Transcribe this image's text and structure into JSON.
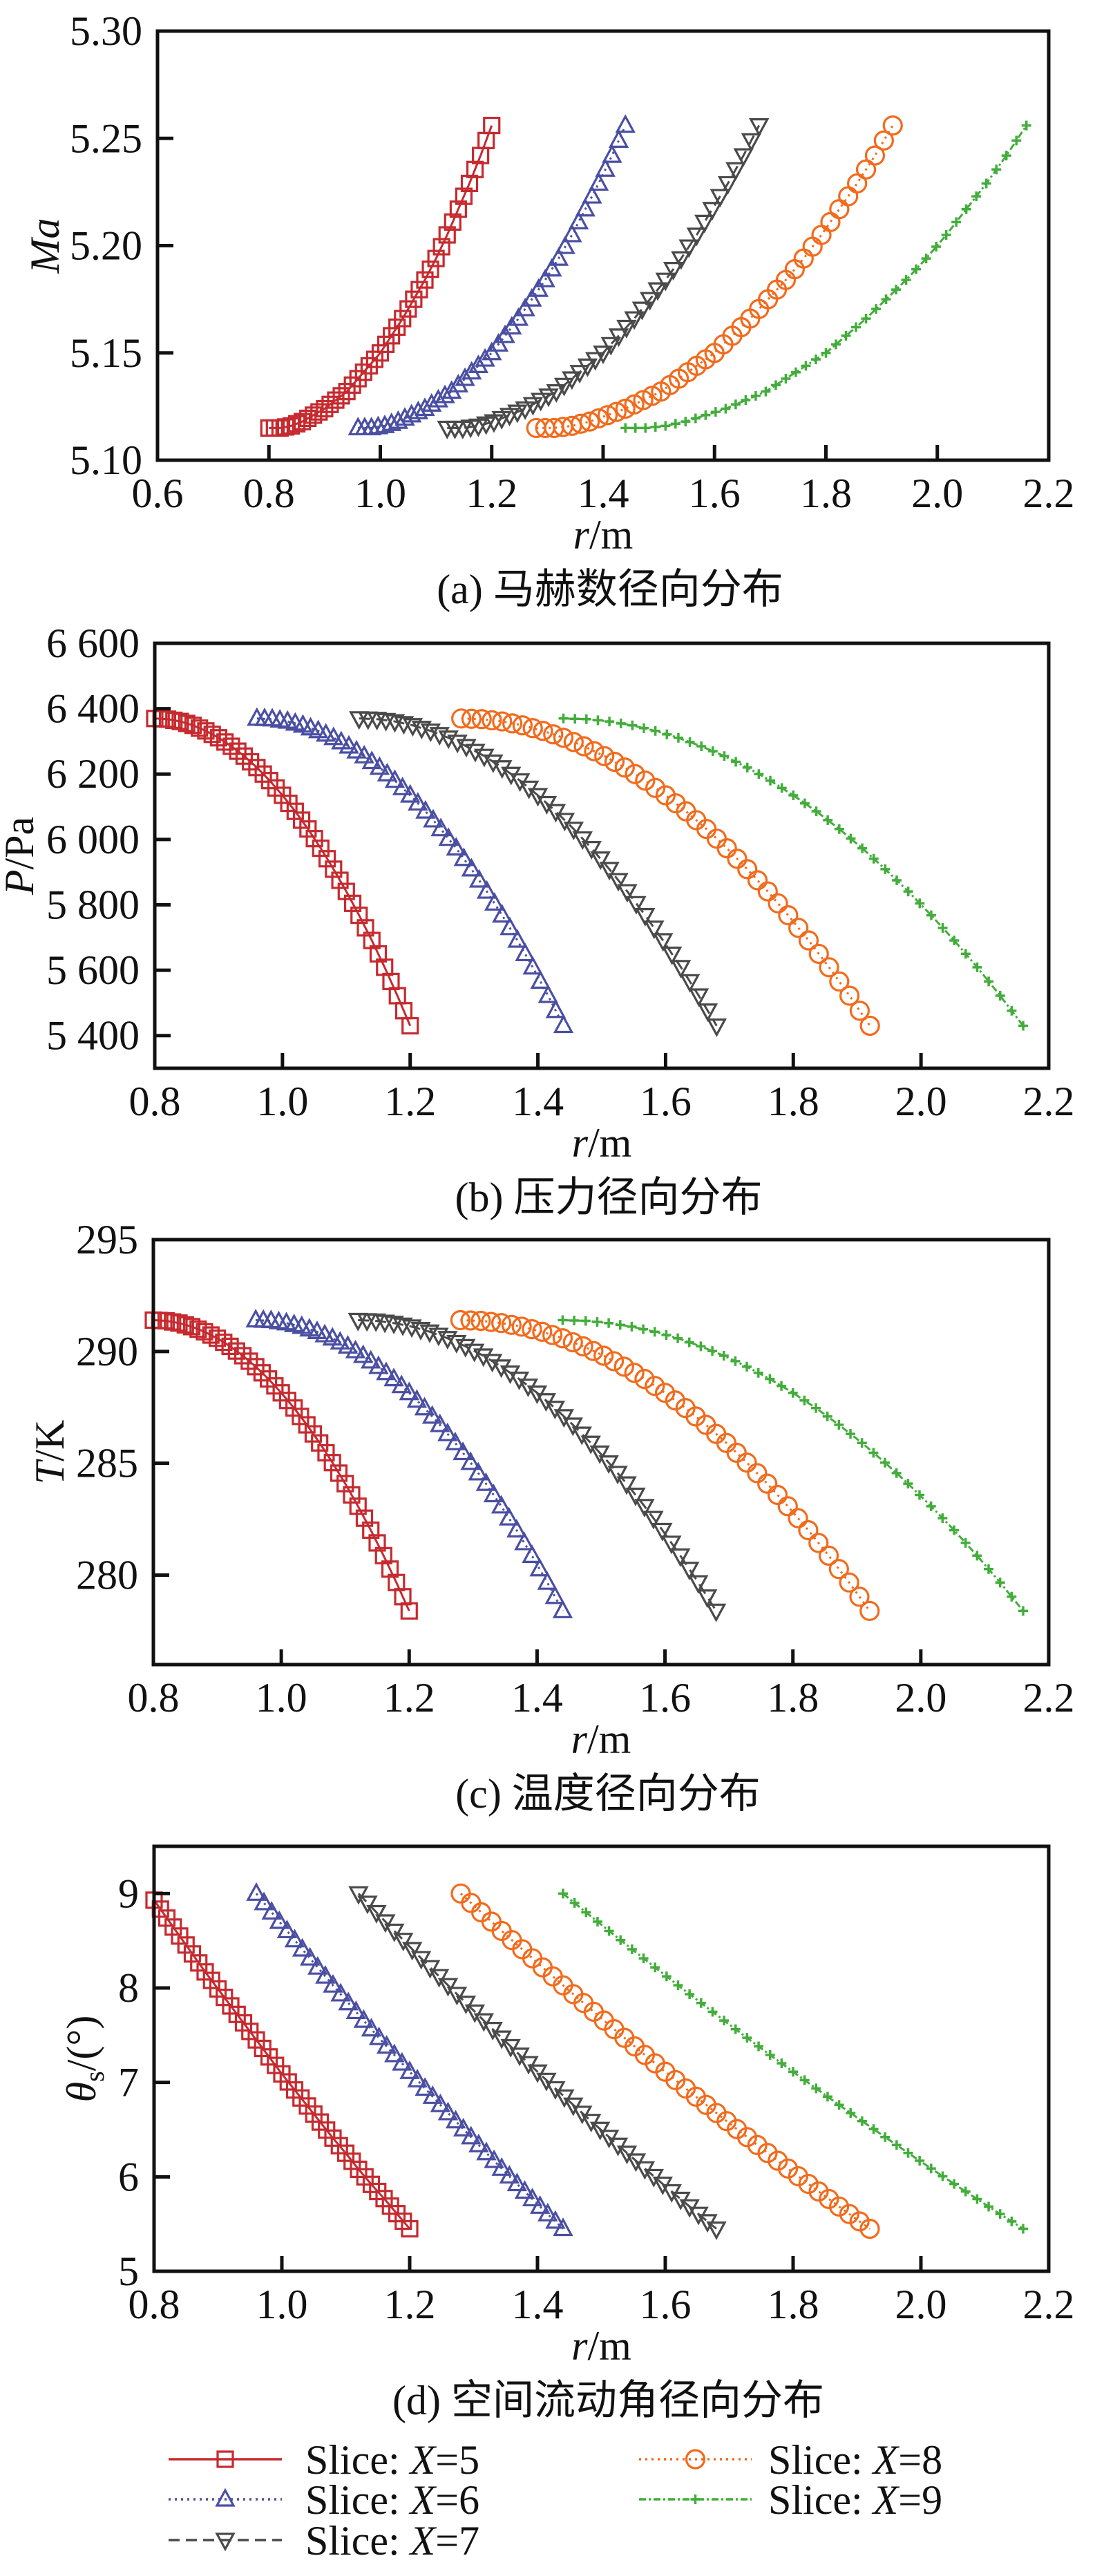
{
  "legend": {
    "placement": "bottom",
    "entries": [
      {
        "label": "Slice: X=5",
        "series": "X5"
      },
      {
        "label": "Slice: X=6",
        "series": "X6"
      },
      {
        "label": "Slice: X=7",
        "series": "X7"
      },
      {
        "label": "Slice: X=8",
        "series": "X8"
      },
      {
        "label": "Slice: X=9",
        "series": "X9"
      }
    ]
  },
  "series_style": {
    "X5": {
      "color": "#c62a2f",
      "marker": "square",
      "line": "solid"
    },
    "X6": {
      "color": "#4a4fa3",
      "marker": "triangle-up",
      "line": "dotted"
    },
    "X7": {
      "color": "#4a4a4a",
      "marker": "triangle-down",
      "line": "dashed"
    },
    "X8": {
      "color": "#f26b1d",
      "marker": "circle",
      "line": "dotted"
    },
    "X9": {
      "color": "#43ad3b",
      "marker": "plus",
      "line": "dash-dot"
    }
  },
  "chart_data": [
    {
      "type": "line",
      "caption": "(a) 马赫数径向分布",
      "xlabel": {
        "italic": "r",
        "normal": "/m"
      },
      "ylabel": {
        "italic": "Ma",
        "sub": "",
        "normal": ""
      },
      "xlim": [
        0.6,
        2.2
      ],
      "xticks": [
        0.6,
        0.8,
        1.0,
        1.2,
        1.4,
        1.6,
        1.8,
        2.0,
        2.2
      ],
      "xtick_labels": [
        "0.6",
        "0.8",
        "1.0",
        "1.2",
        "1.4",
        "1.6",
        "1.8",
        "2.0",
        "2.2"
      ],
      "ylim": [
        5.1,
        5.3
      ],
      "yticks": [
        5.1,
        5.15,
        5.2,
        5.25,
        5.3
      ],
      "ytick_labels": [
        "5.10",
        "5.15",
        "5.20",
        "5.25",
        "5.30"
      ],
      "grid": false,
      "series": [
        {
          "name": "X5",
          "r_range": [
            0.8,
            1.2
          ],
          "values": [
            5.115,
            5.115,
            5.116,
            5.118,
            5.121,
            5.124,
            5.128,
            5.132,
            5.138,
            5.144,
            5.15,
            5.158,
            5.166,
            5.175,
            5.184,
            5.194,
            5.205,
            5.217,
            5.229,
            5.242,
            5.256
          ]
        },
        {
          "name": "X6",
          "r_range": [
            0.96,
            1.44
          ],
          "values": [
            5.115,
            5.115,
            5.116,
            5.118,
            5.121,
            5.124,
            5.128,
            5.132,
            5.138,
            5.144,
            5.15,
            5.158,
            5.166,
            5.175,
            5.184,
            5.194,
            5.205,
            5.217,
            5.229,
            5.242,
            5.256
          ]
        },
        {
          "name": "X7",
          "r_range": [
            1.12,
            1.68
          ],
          "values": [
            5.115,
            5.115,
            5.116,
            5.118,
            5.121,
            5.124,
            5.128,
            5.132,
            5.138,
            5.144,
            5.15,
            5.158,
            5.166,
            5.175,
            5.184,
            5.194,
            5.205,
            5.217,
            5.229,
            5.242,
            5.256
          ]
        },
        {
          "name": "X8",
          "r_range": [
            1.28,
            1.92
          ],
          "values": [
            5.115,
            5.115,
            5.116,
            5.118,
            5.121,
            5.124,
            5.128,
            5.132,
            5.138,
            5.144,
            5.15,
            5.158,
            5.166,
            5.175,
            5.184,
            5.194,
            5.205,
            5.217,
            5.229,
            5.242,
            5.256
          ]
        },
        {
          "name": "X9",
          "r_range": [
            1.44,
            2.16
          ],
          "values": [
            5.115,
            5.115,
            5.116,
            5.118,
            5.121,
            5.124,
            5.128,
            5.132,
            5.138,
            5.144,
            5.15,
            5.158,
            5.166,
            5.175,
            5.184,
            5.194,
            5.205,
            5.217,
            5.229,
            5.242,
            5.256
          ]
        }
      ]
    },
    {
      "type": "line",
      "caption": "(b) 压力径向分布",
      "xlabel": {
        "italic": "r",
        "normal": "/m"
      },
      "ylabel": {
        "italic": "P",
        "sub": "",
        "normal": "/Pa"
      },
      "xlim": [
        0.8,
        2.2
      ],
      "xticks": [
        0.8,
        1.0,
        1.2,
        1.4,
        1.6,
        1.8,
        2.0,
        2.2
      ],
      "xtick_labels": [
        "0.8",
        "1.0",
        "1.2",
        "1.4",
        "1.6",
        "1.8",
        "2.0",
        "2.2"
      ],
      "ylim": [
        5300,
        6600
      ],
      "yticks": [
        5400,
        5600,
        5800,
        6000,
        6200,
        6400,
        6600
      ],
      "ytick_labels": [
        "5 400",
        "5 600",
        "5 800",
        "6 000",
        "6 200",
        "6 400",
        "6 600"
      ],
      "grid": false,
      "series": [
        {
          "name": "X5",
          "r_range": [
            0.8,
            1.2
          ],
          "values": [
            6370,
            6368,
            6361,
            6349,
            6332,
            6311,
            6285,
            6255,
            6220,
            6180,
            6135,
            6086,
            6032,
            5973,
            5909,
            5841,
            5768,
            5691,
            5609,
            5522,
            5430
          ]
        },
        {
          "name": "X6",
          "r_range": [
            0.96,
            1.44
          ],
          "values": [
            6370,
            6368,
            6361,
            6349,
            6332,
            6311,
            6285,
            6255,
            6220,
            6180,
            6135,
            6086,
            6032,
            5973,
            5909,
            5841,
            5768,
            5691,
            5609,
            5522,
            5430
          ]
        },
        {
          "name": "X7",
          "r_range": [
            1.12,
            1.68
          ],
          "values": [
            6370,
            6368,
            6361,
            6349,
            6332,
            6311,
            6285,
            6255,
            6220,
            6180,
            6135,
            6086,
            6032,
            5973,
            5909,
            5841,
            5768,
            5691,
            5609,
            5522,
            5430
          ]
        },
        {
          "name": "X8",
          "r_range": [
            1.28,
            1.92
          ],
          "values": [
            6370,
            6368,
            6361,
            6349,
            6332,
            6311,
            6285,
            6255,
            6220,
            6180,
            6135,
            6086,
            6032,
            5973,
            5909,
            5841,
            5768,
            5691,
            5609,
            5522,
            5430
          ]
        },
        {
          "name": "X9",
          "r_range": [
            1.44,
            2.16
          ],
          "values": [
            6370,
            6368,
            6361,
            6349,
            6332,
            6311,
            6285,
            6255,
            6220,
            6180,
            6135,
            6086,
            6032,
            5973,
            5909,
            5841,
            5768,
            5691,
            5609,
            5522,
            5430
          ]
        }
      ]
    },
    {
      "type": "line",
      "caption": "(c) 温度径向分布",
      "xlabel": {
        "italic": "r",
        "normal": "/m"
      },
      "ylabel": {
        "italic": "T",
        "sub": "",
        "normal": "/K"
      },
      "xlim": [
        0.8,
        2.2
      ],
      "xticks": [
        0.8,
        1.0,
        1.2,
        1.4,
        1.6,
        1.8,
        2.0,
        2.2
      ],
      "xtick_labels": [
        "0.8",
        "1.0",
        "1.2",
        "1.4",
        "1.6",
        "1.8",
        "2.0",
        "2.2"
      ],
      "ylim": [
        276,
        295
      ],
      "yticks": [
        280,
        285,
        290,
        295
      ],
      "ytick_labels": [
        "280",
        "285",
        "290",
        "295"
      ],
      "grid": false,
      "series": [
        {
          "name": "X5",
          "r_range": [
            0.8,
            1.2
          ],
          "values": [
            291.4,
            291.37,
            291.27,
            291.11,
            290.88,
            290.59,
            290.23,
            289.81,
            289.32,
            288.77,
            288.15,
            287.47,
            286.72,
            285.91,
            285.03,
            284.09,
            283.08,
            282.01,
            280.87,
            279.67,
            278.4
          ]
        },
        {
          "name": "X6",
          "r_range": [
            0.96,
            1.44
          ],
          "values": [
            291.4,
            291.37,
            291.27,
            291.11,
            290.88,
            290.59,
            290.23,
            289.81,
            289.32,
            288.77,
            288.15,
            287.47,
            286.72,
            285.91,
            285.03,
            284.09,
            283.08,
            282.01,
            280.87,
            279.67,
            278.4
          ]
        },
        {
          "name": "X7",
          "r_range": [
            1.12,
            1.68
          ],
          "values": [
            291.4,
            291.37,
            291.27,
            291.11,
            290.88,
            290.59,
            290.23,
            289.81,
            289.32,
            288.77,
            288.15,
            287.47,
            286.72,
            285.91,
            285.03,
            284.09,
            283.08,
            282.01,
            280.87,
            279.67,
            278.4
          ]
        },
        {
          "name": "X8",
          "r_range": [
            1.28,
            1.92
          ],
          "values": [
            291.4,
            291.37,
            291.27,
            291.11,
            290.88,
            290.59,
            290.23,
            289.81,
            289.32,
            288.77,
            288.15,
            287.47,
            286.72,
            285.91,
            285.03,
            284.09,
            283.08,
            282.01,
            280.87,
            279.67,
            278.4
          ]
        },
        {
          "name": "X9",
          "r_range": [
            1.44,
            2.16
          ],
          "values": [
            291.4,
            291.37,
            291.27,
            291.11,
            290.88,
            290.59,
            290.23,
            289.81,
            289.32,
            288.77,
            288.15,
            287.47,
            286.72,
            285.91,
            285.03,
            284.09,
            283.08,
            282.01,
            280.87,
            279.67,
            278.4
          ]
        }
      ]
    },
    {
      "type": "line",
      "caption": "(d) 空间流动角径向分布",
      "xlabel": {
        "italic": "r",
        "normal": "/m"
      },
      "ylabel": {
        "italic": "θ",
        "sub": "s",
        "normal": "/(°)"
      },
      "xlim": [
        0.8,
        2.2
      ],
      "xticks": [
        0.8,
        1.0,
        1.2,
        1.4,
        1.6,
        1.8,
        2.0,
        2.2
      ],
      "xtick_labels": [
        "0.8",
        "1.0",
        "1.2",
        "1.4",
        "1.6",
        "1.8",
        "2.0",
        "2.2"
      ],
      "ylim": [
        5,
        9.5
      ],
      "yticks": [
        5,
        6,
        7,
        8,
        9
      ],
      "ytick_labels": [
        "5",
        "6",
        "7",
        "8",
        "9"
      ],
      "grid": false,
      "series": [
        {
          "name": "X5",
          "r_range": [
            0.8,
            1.2
          ],
          "values": [
            8.93,
            8.74,
            8.55,
            8.36,
            8.17,
            7.99,
            7.81,
            7.63,
            7.45,
            7.27,
            7.09,
            6.92,
            6.75,
            6.58,
            6.41,
            6.25,
            6.08,
            5.92,
            5.77,
            5.61,
            5.45
          ]
        },
        {
          "name": "X6",
          "r_range": [
            0.96,
            1.44
          ],
          "values": [
            9.0,
            8.801,
            8.604,
            8.41,
            8.218,
            8.028,
            7.841,
            7.655,
            7.472,
            7.291,
            7.113,
            6.936,
            6.762,
            6.59,
            6.421,
            6.253,
            6.088,
            5.925,
            5.765,
            5.606,
            5.45
          ]
        },
        {
          "name": "X7",
          "r_range": [
            1.12,
            1.68
          ],
          "values": [
            9.0,
            8.801,
            8.604,
            8.41,
            8.218,
            8.028,
            7.841,
            7.655,
            7.472,
            7.291,
            7.113,
            6.936,
            6.762,
            6.59,
            6.421,
            6.253,
            6.088,
            5.925,
            5.765,
            5.606,
            5.45
          ]
        },
        {
          "name": "X8",
          "r_range": [
            1.28,
            1.92
          ],
          "values": [
            9.0,
            8.801,
            8.604,
            8.41,
            8.218,
            8.028,
            7.841,
            7.655,
            7.472,
            7.291,
            7.113,
            6.936,
            6.762,
            6.59,
            6.421,
            6.253,
            6.088,
            5.925,
            5.765,
            5.606,
            5.45
          ]
        },
        {
          "name": "X9",
          "r_range": [
            1.44,
            2.16
          ],
          "values": [
            9.0,
            8.801,
            8.604,
            8.41,
            8.218,
            8.028,
            7.841,
            7.655,
            7.472,
            7.291,
            7.113,
            6.936,
            6.762,
            6.59,
            6.421,
            6.253,
            6.088,
            5.925,
            5.765,
            5.606,
            5.45
          ]
        }
      ]
    }
  ]
}
